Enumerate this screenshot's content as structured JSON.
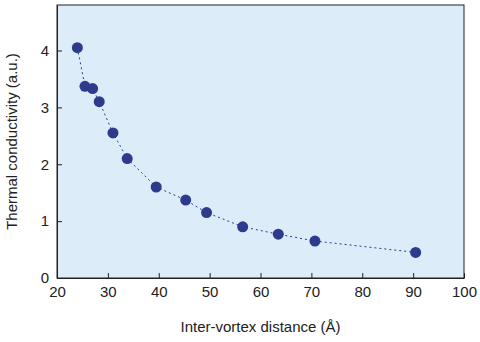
{
  "chart_data": {
    "type": "line",
    "x_label": "Inter-vortex distance (Å)",
    "y_label": "Thermal conductivity (a.u.)",
    "x": [
      24,
      25.5,
      27,
      28.3,
      31,
      33.8,
      39.5,
      45.3,
      49.4,
      56.5,
      63.5,
      70.7,
      90.5
    ],
    "values": [
      4.05,
      3.37,
      3.33,
      3.1,
      2.55,
      2.1,
      1.6,
      1.37,
      1.15,
      0.9,
      0.77,
      0.65,
      0.45
    ],
    "color": "#2e3a8c",
    "marker": "circle",
    "line_style": "dotted",
    "xlim": [
      20,
      100
    ],
    "xticks": [
      20,
      30,
      40,
      50,
      60,
      70,
      80,
      90,
      100
    ],
    "ylim": [
      0,
      4.8
    ],
    "yticks": [
      0,
      1,
      2,
      3,
      4
    ],
    "grid": false
  }
}
